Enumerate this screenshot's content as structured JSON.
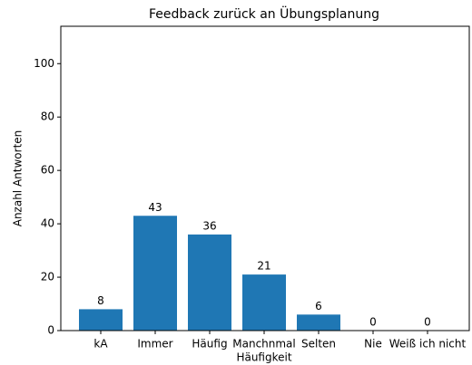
{
  "chart_data": {
    "type": "bar",
    "title": "Feedback zurück an Übungsplanung",
    "xlabel": "Häufigkeit",
    "ylabel": "Anzahl Antworten",
    "categories": [
      "kA",
      "Immer",
      "Häufig",
      "Manchnmal",
      "Selten",
      "Nie",
      "Weiß ich nicht"
    ],
    "values": [
      8,
      43,
      36,
      21,
      6,
      0,
      0
    ],
    "color": "#1f77b4",
    "ylim": [
      0,
      114
    ],
    "yticks": [
      0,
      20,
      40,
      60,
      80,
      100
    ]
  }
}
